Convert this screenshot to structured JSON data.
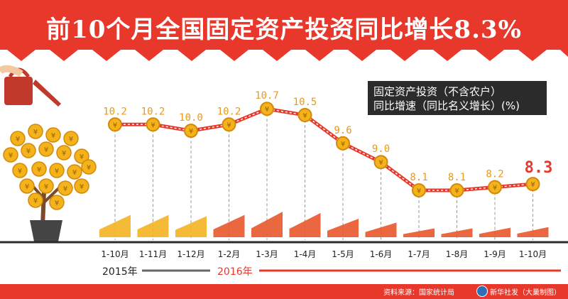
{
  "title": "前10个月全国固定资产投资同比增长8.3%",
  "legend": {
    "line1": "固定资产投资（不含农户）",
    "line2": "同比增速（同比名义增长）(%)"
  },
  "years": {
    "y2015": "2015年",
    "y2016": "2016年"
  },
  "footer": {
    "source": "资料来源：国家统计局",
    "credit": "新华社发（大巢制图）"
  },
  "colors": {
    "red": "#e8382b",
    "orange": "#f5a623",
    "line": "#e8382b",
    "dark": "#2b2b2b"
  },
  "chart_data": {
    "type": "line",
    "categories": [
      "1-10月",
      "1-11月",
      "1-12月",
      "1-2月",
      "1-3月",
      "1-4月",
      "1-5月",
      "1-6月",
      "1-7月",
      "1-8月",
      "1-9月",
      "1-10月"
    ],
    "values": [
      10.2,
      10.2,
      10.0,
      10.2,
      10.7,
      10.5,
      9.6,
      9.0,
      8.1,
      8.1,
      8.2,
      8.3
    ],
    "labels": [
      "10.2",
      "10.2",
      "10.0",
      "10.2",
      "10.7",
      "10.5",
      "9.6",
      "9.0",
      "8.1",
      "8.1",
      "8.2",
      "8.3"
    ],
    "ylim": [
      7.6,
      11.0
    ],
    "grid": false
  }
}
